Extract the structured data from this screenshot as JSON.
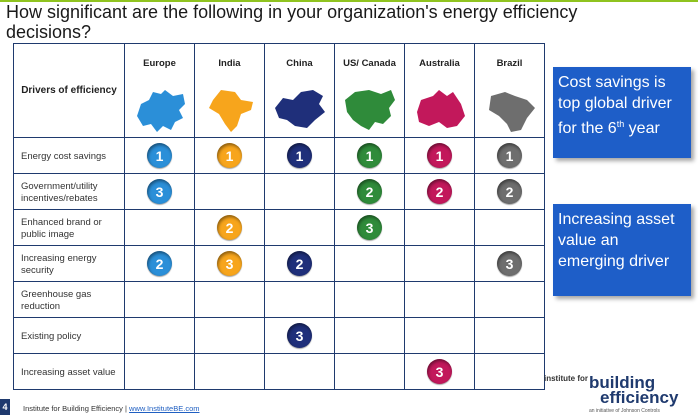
{
  "title": "How significant are the following in your organization's energy efficiency decisions?",
  "colors": {
    "accent_line": "#8fc31f",
    "grid_border": "#1f3a6e",
    "callout_bg": "#1e5ec8"
  },
  "table": {
    "corner_label": "Drivers of efficiency",
    "columns": [
      {
        "name": "Europe",
        "color": "#2b8fd8",
        "icon": "europe-map-icon"
      },
      {
        "name": "India",
        "color": "#f7a51c",
        "icon": "india-map-icon"
      },
      {
        "name": "China",
        "color": "#1f2f7a",
        "icon": "china-map-icon"
      },
      {
        "name": "US/ Canada",
        "color": "#2f8b3a",
        "icon": "us-canada-map-icon"
      },
      {
        "name": "Australia",
        "color": "#c2185b",
        "icon": "australia-map-icon"
      },
      {
        "name": "Brazil",
        "color": "#6e6e6e",
        "icon": "brazil-map-icon"
      }
    ],
    "rows": [
      {
        "label": "Energy cost savings",
        "ranks": [
          "1",
          "1",
          "1",
          "1",
          "1",
          "1"
        ]
      },
      {
        "label": "Government/utility incentives/rebates",
        "ranks": [
          "3",
          "",
          "",
          "2",
          "2",
          "2"
        ]
      },
      {
        "label": "Enhanced brand or public image",
        "ranks": [
          "",
          "2",
          "",
          "3",
          "",
          ""
        ]
      },
      {
        "label": "Increasing energy security",
        "ranks": [
          "2",
          "3",
          "2",
          "",
          "",
          "3"
        ]
      },
      {
        "label": "Greenhouse gas reduction",
        "ranks": [
          "",
          "",
          "",
          "",
          "",
          ""
        ]
      },
      {
        "label": "Existing policy",
        "ranks": [
          "",
          "",
          "3",
          "",
          "",
          ""
        ]
      },
      {
        "label": "Increasing asset value",
        "ranks": [
          "",
          "",
          "",
          "",
          "3",
          ""
        ]
      }
    ]
  },
  "callouts": {
    "first": {
      "text": "Cost savings is top global driver for the 6",
      "sup": "th",
      "tail": " year"
    },
    "second": {
      "text": "Increasing asset value an emerging driver"
    }
  },
  "footer": {
    "page_number": "4",
    "text": "Institute for Building Efficiency |",
    "link": "www.InstituteBE.com"
  },
  "logo": {
    "small": "institute for",
    "big1": "building",
    "big2": "efficiency",
    "tagline": "an initiative of Johnson Controls"
  }
}
